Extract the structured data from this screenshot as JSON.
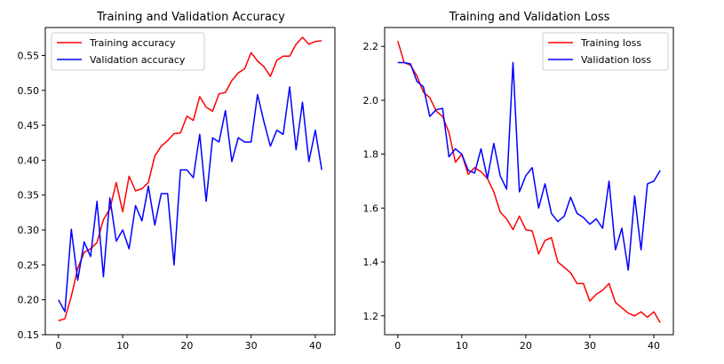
{
  "chart_data": [
    {
      "type": "line",
      "title": "Training and Validation Accuracy",
      "xlabel": "",
      "ylabel": "",
      "xlim": [
        -2.05,
        43.05
      ],
      "ylim": [
        0.15,
        0.59
      ],
      "xticks": [
        0,
        10,
        20,
        30,
        40
      ],
      "yticks": [
        0.15,
        0.2,
        0.25,
        0.3,
        0.35,
        0.4,
        0.45,
        0.5,
        0.55
      ],
      "tick_decimals": 2,
      "grid": false,
      "legend": "upper-left",
      "series": [
        {
          "name": "Training accuracy",
          "color": "#ff0000",
          "x": [
            0,
            1,
            2,
            3,
            4,
            5,
            6,
            7,
            8,
            9,
            10,
            11,
            12,
            13,
            14,
            15,
            16,
            17,
            18,
            19,
            20,
            21,
            22,
            23,
            24,
            25,
            26,
            27,
            28,
            29,
            30,
            31,
            32,
            33,
            34,
            35,
            36,
            37,
            38,
            39,
            40,
            41
          ],
          "values": [
            0.17,
            0.173,
            0.205,
            0.245,
            0.268,
            0.273,
            0.282,
            0.315,
            0.33,
            0.368,
            0.326,
            0.377,
            0.356,
            0.359,
            0.368,
            0.406,
            0.42,
            0.428,
            0.438,
            0.439,
            0.463,
            0.457,
            0.491,
            0.476,
            0.47,
            0.495,
            0.497,
            0.514,
            0.525,
            0.531,
            0.554,
            0.542,
            0.534,
            0.52,
            0.543,
            0.549,
            0.549,
            0.566,
            0.576,
            0.566,
            0.57,
            0.571
          ]
        },
        {
          "name": "Validation accuracy",
          "color": "#0000ff",
          "x": [
            0,
            1,
            2,
            3,
            4,
            5,
            6,
            7,
            8,
            9,
            10,
            11,
            12,
            13,
            14,
            15,
            16,
            17,
            18,
            19,
            20,
            21,
            22,
            23,
            24,
            25,
            26,
            27,
            28,
            29,
            30,
            31,
            32,
            33,
            34,
            35,
            36,
            37,
            38,
            39,
            40,
            41
          ],
          "values": [
            0.2,
            0.183,
            0.301,
            0.228,
            0.283,
            0.262,
            0.341,
            0.233,
            0.346,
            0.284,
            0.3,
            0.273,
            0.335,
            0.313,
            0.363,
            0.307,
            0.352,
            0.352,
            0.25,
            0.386,
            0.386,
            0.375,
            0.437,
            0.341,
            0.432,
            0.426,
            0.471,
            0.398,
            0.432,
            0.426,
            0.426,
            0.494,
            0.455,
            0.42,
            0.443,
            0.437,
            0.505,
            0.415,
            0.483,
            0.398,
            0.443,
            0.386
          ]
        }
      ]
    },
    {
      "type": "line",
      "title": "Training and Validation Loss",
      "xlabel": "",
      "ylabel": "",
      "xlim": [
        -2.05,
        43.05
      ],
      "ylim": [
        1.13,
        2.27
      ],
      "xticks": [
        0,
        10,
        20,
        30,
        40
      ],
      "yticks": [
        1.2,
        1.4,
        1.6,
        1.8,
        2.0,
        2.2
      ],
      "tick_decimals": 1,
      "grid": false,
      "legend": "upper-right",
      "series": [
        {
          "name": "Training loss",
          "color": "#ff0000",
          "x": [
            0,
            1,
            2,
            3,
            4,
            5,
            6,
            7,
            8,
            9,
            10,
            11,
            12,
            13,
            14,
            15,
            16,
            17,
            18,
            19,
            20,
            21,
            22,
            23,
            24,
            25,
            26,
            27,
            28,
            29,
            30,
            31,
            32,
            33,
            34,
            35,
            36,
            37,
            38,
            39,
            40,
            41
          ],
          "values": [
            2.22,
            2.14,
            2.13,
            2.09,
            2.03,
            2.01,
            1.96,
            1.94,
            1.88,
            1.77,
            1.8,
            1.725,
            1.75,
            1.735,
            1.71,
            1.66,
            1.585,
            1.56,
            1.52,
            1.57,
            1.52,
            1.515,
            1.43,
            1.48,
            1.49,
            1.4,
            1.38,
            1.36,
            1.32,
            1.32,
            1.255,
            1.28,
            1.295,
            1.32,
            1.25,
            1.23,
            1.21,
            1.2,
            1.215,
            1.195,
            1.215,
            1.175
          ]
        },
        {
          "name": "Validation loss",
          "color": "#0000ff",
          "x": [
            0,
            1,
            2,
            3,
            4,
            5,
            6,
            7,
            8,
            9,
            10,
            11,
            12,
            13,
            14,
            15,
            16,
            17,
            18,
            19,
            20,
            21,
            22,
            23,
            24,
            25,
            26,
            27,
            28,
            29,
            30,
            31,
            32,
            33,
            34,
            35,
            36,
            37,
            38,
            39,
            40,
            41
          ],
          "values": [
            2.14,
            2.14,
            2.135,
            2.07,
            2.05,
            1.94,
            1.965,
            1.97,
            1.79,
            1.82,
            1.8,
            1.74,
            1.73,
            1.82,
            1.71,
            1.84,
            1.72,
            1.67,
            2.14,
            1.66,
            1.72,
            1.75,
            1.6,
            1.69,
            1.58,
            1.55,
            1.57,
            1.64,
            1.58,
            1.565,
            1.54,
            1.56,
            1.525,
            1.7,
            1.445,
            1.525,
            1.37,
            1.645,
            1.445,
            1.69,
            1.7,
            1.74
          ]
        }
      ]
    }
  ]
}
